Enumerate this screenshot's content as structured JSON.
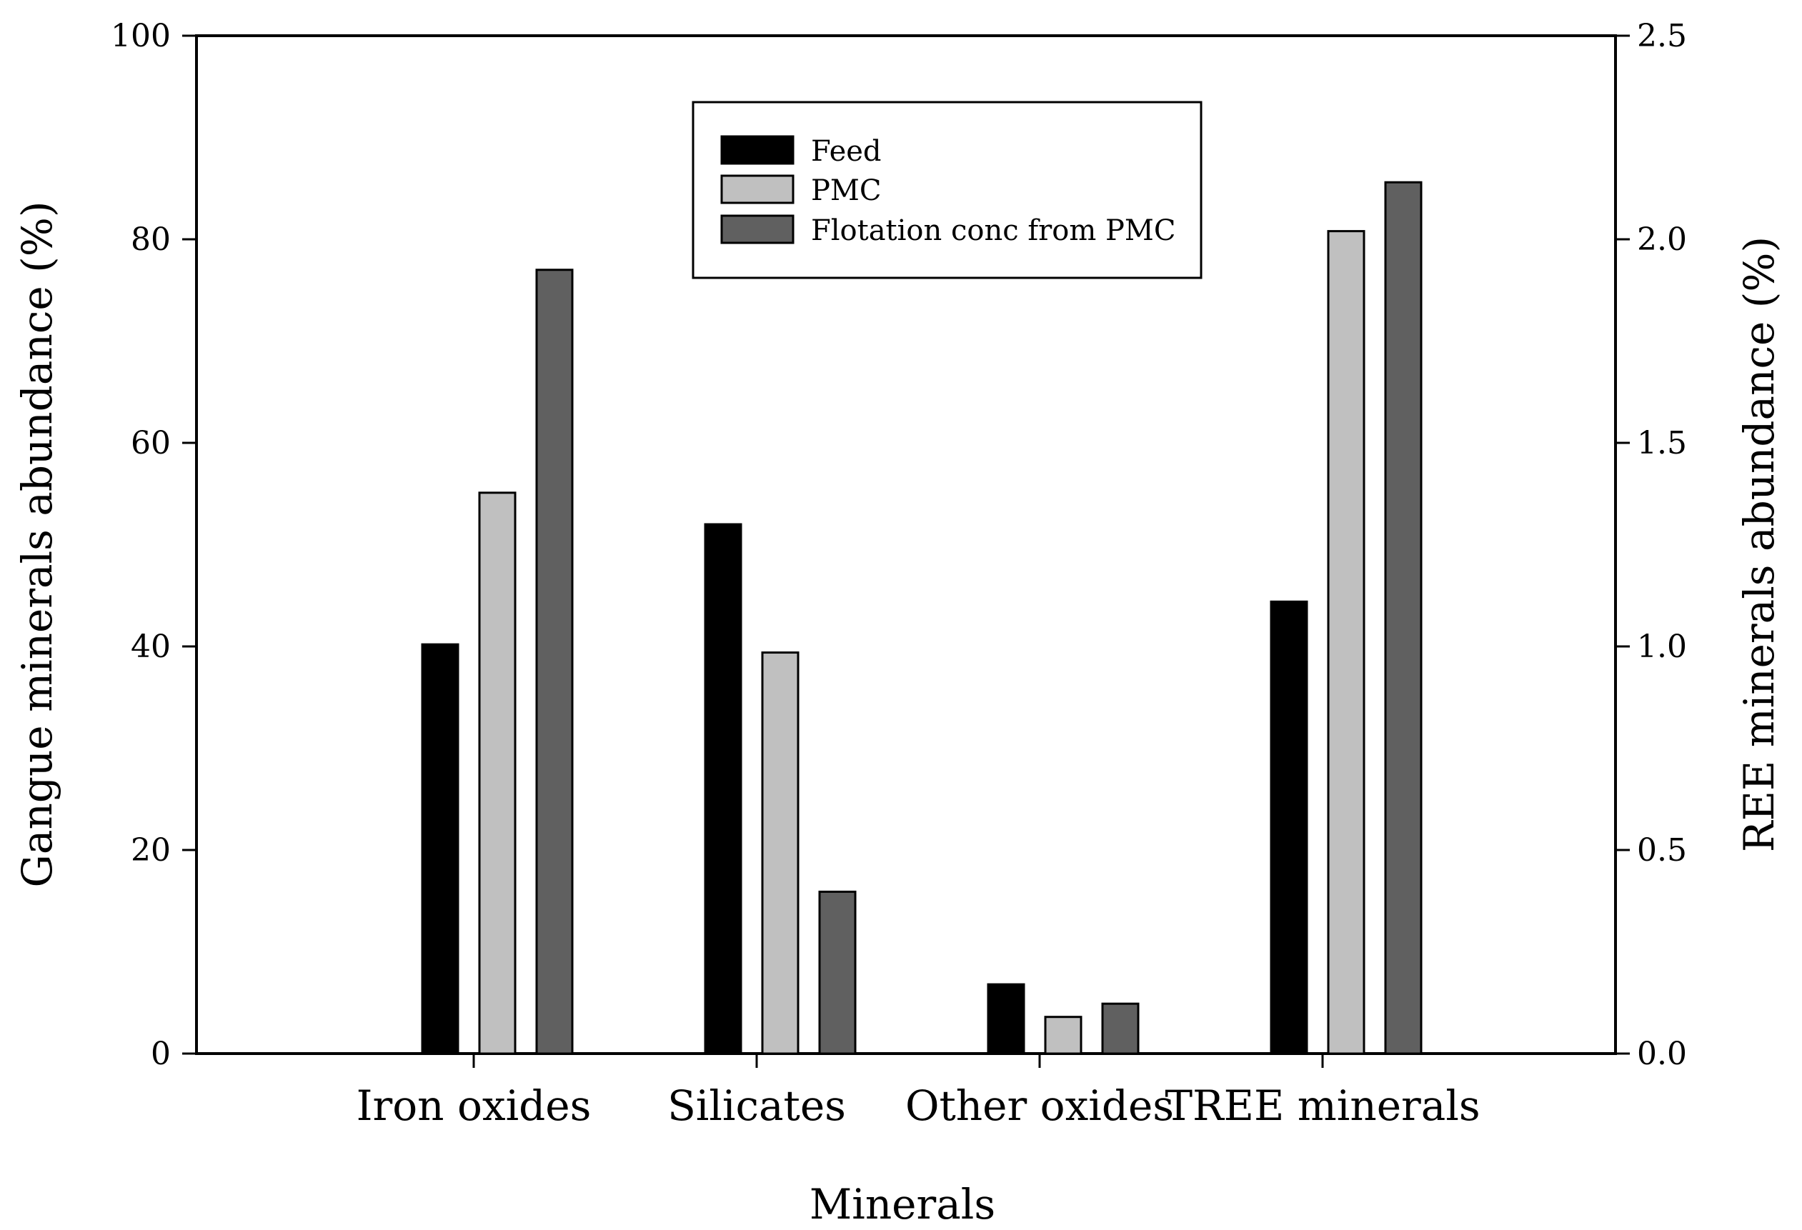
{
  "chart_data": {
    "type": "bar",
    "title": "",
    "xlabel": "Minerals",
    "ylabel": "Gangue minerals abundance (%)",
    "ylabel_right": "REE minerals abundance (%)",
    "categories": [
      "Iron oxides",
      "Silicates",
      "Other oxides",
      "TREE minerals"
    ],
    "ylim": [
      0,
      100
    ],
    "ylim_right": [
      0,
      2.5
    ],
    "yticks": [
      "0",
      "20",
      "40",
      "60",
      "80",
      "100"
    ],
    "yticks_right": [
      "0.0",
      "0.5",
      "1.0",
      "1.5",
      "2.0",
      "2.5"
    ],
    "right_axis_categories": [
      "TREE minerals"
    ],
    "series": [
      {
        "name": "Feed",
        "color": "#000000",
        "values": [
          40.2,
          52.0,
          6.8,
          1.11
        ]
      },
      {
        "name": "PMC",
        "color": "#c0c0c0",
        "values": [
          55.1,
          39.4,
          3.6,
          2.02
        ]
      },
      {
        "name": "Flotation conc from PMC",
        "color": "#606060",
        "values": [
          77.0,
          15.9,
          4.9,
          2.14
        ]
      }
    ],
    "legend_position": "top-center",
    "grid": false
  }
}
